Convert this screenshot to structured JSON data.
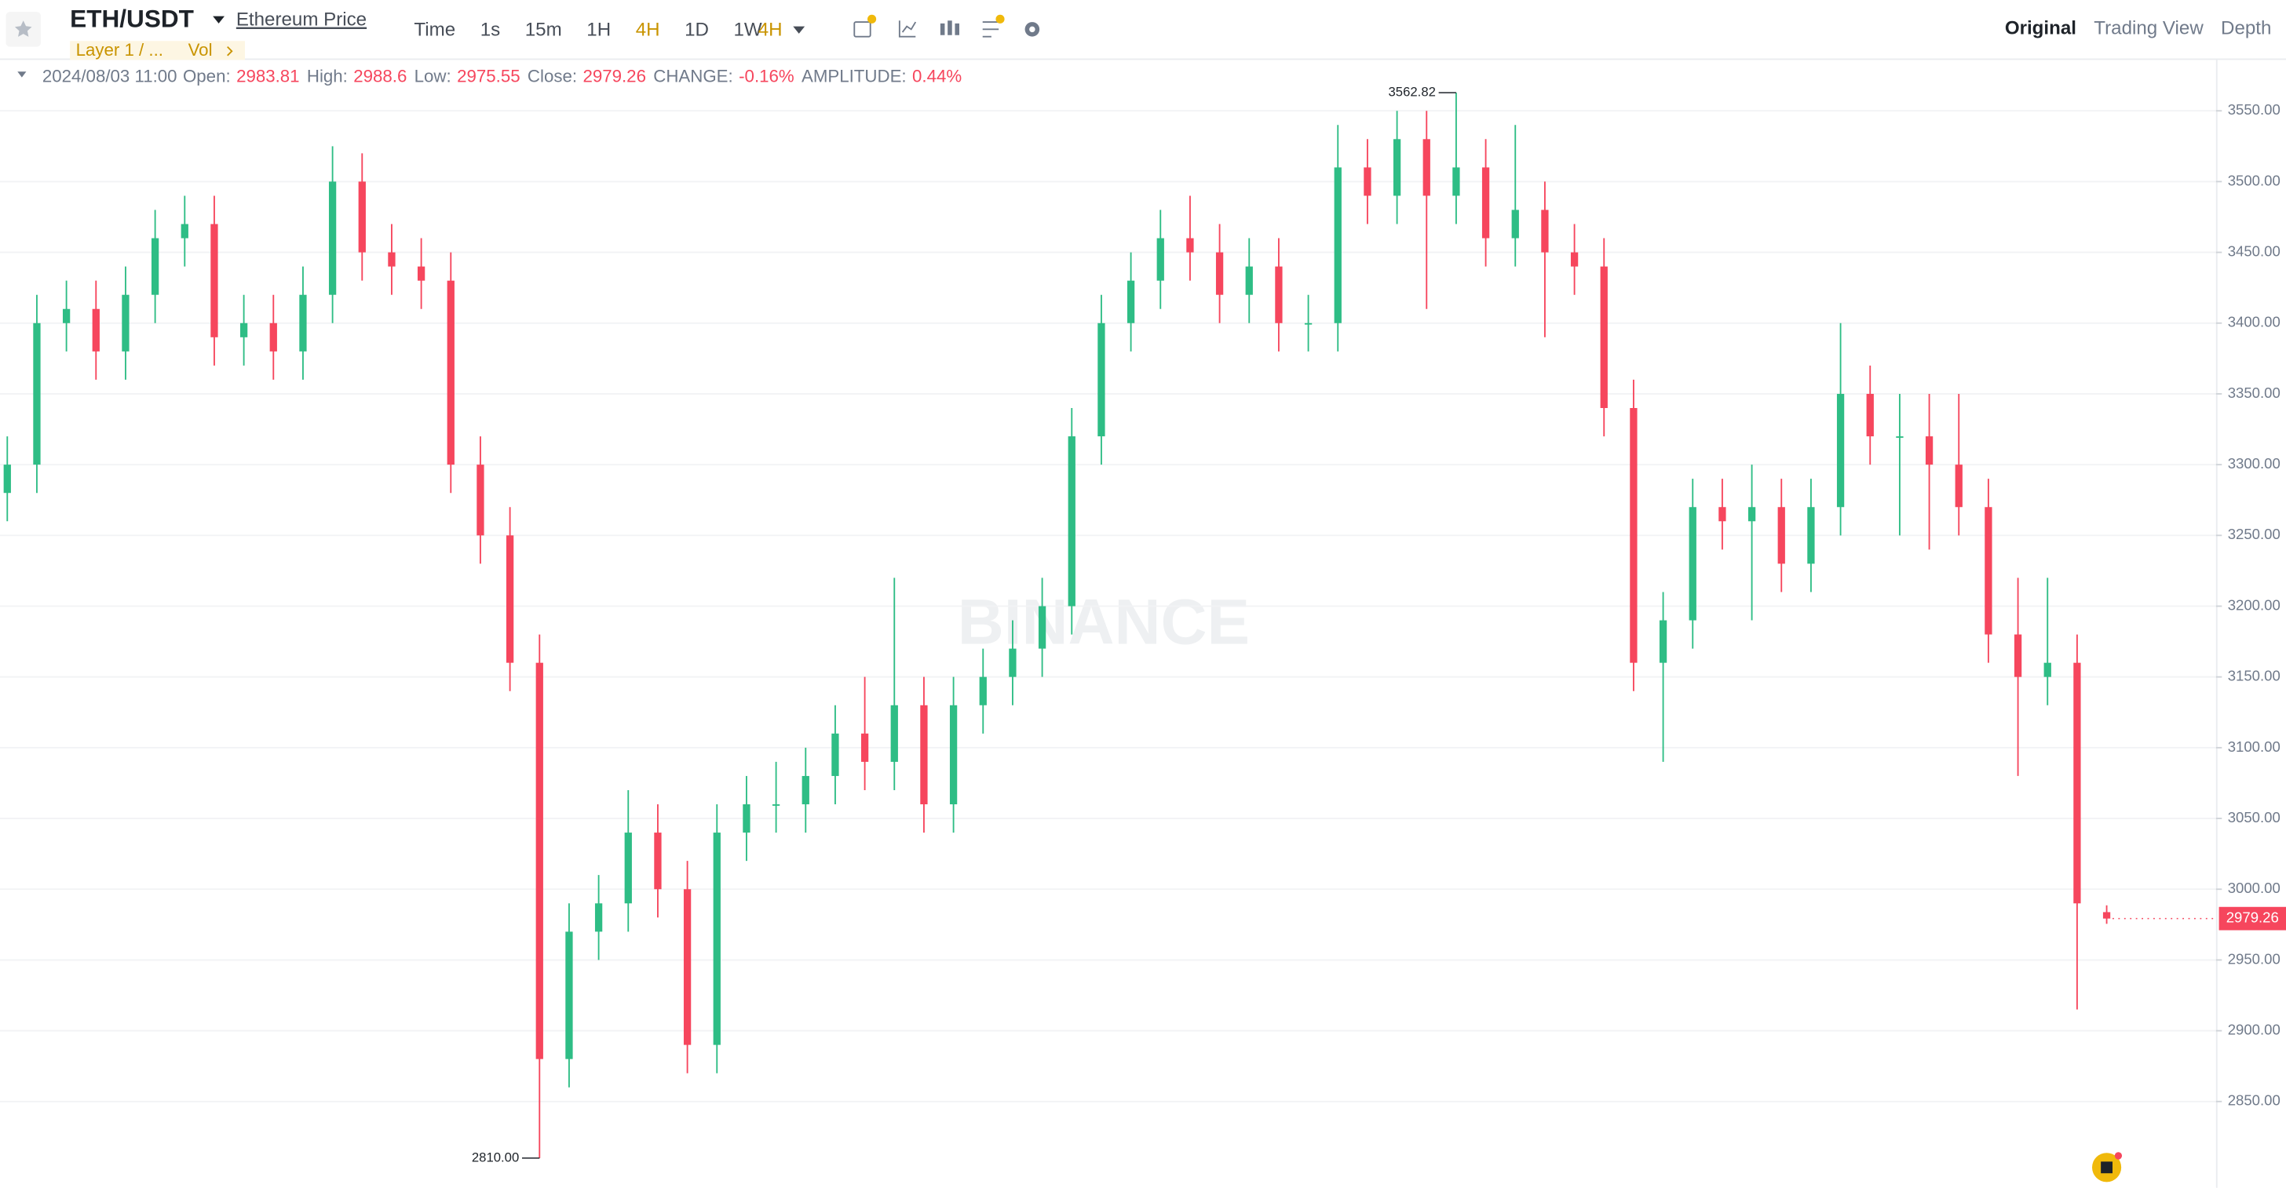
{
  "toolbar": {
    "symbol": "ETH/USDT",
    "link": "Ethereum Price",
    "intervals": [
      "Time",
      "1s",
      "15m",
      "1H",
      "4H",
      "1D",
      "1W"
    ],
    "active_index": 4,
    "selected_interval": "4H",
    "tag": "Layer 1 / ...",
    "vol": "Vol",
    "views": [
      "Original",
      "Trading View",
      "Depth"
    ],
    "active_view": 0
  },
  "legend": {
    "date": "2024/08/03 11:00",
    "open_label": "Open:",
    "high_label": "High:",
    "low_label": "Low:",
    "close_label": "Close:",
    "change_label": "CHANGE:",
    "change": "-0.16%",
    "amplitude_label": "AMPLITUDE:",
    "amplitude": "0.44%"
  },
  "watermark": "BINANCE",
  "chart_data": {
    "type": "candlestick",
    "up_color": "#2ebd85",
    "down_color": "#f6465d",
    "open": [
      3280,
      3300,
      3400,
      3410,
      3380,
      3420,
      3460,
      3470,
      3390,
      3400,
      3380,
      3420,
      3500,
      3450,
      3440,
      3430,
      3300,
      3250,
      3160,
      2880,
      2970,
      2990,
      3040,
      3000,
      2890,
      3040,
      3060,
      3060,
      3080,
      3110,
      3090,
      3130,
      3060,
      3130,
      3150,
      3170,
      3200,
      3320,
      3400,
      3430,
      3460,
      3450,
      3420,
      3440,
      3400,
      3400,
      3510,
      3490,
      3530,
      3490,
      3510,
      3460,
      3480,
      3450,
      3440,
      3340,
      3160,
      3190,
      3270,
      3260,
      3270,
      3230,
      3270,
      3350,
      3320,
      3320,
      3300,
      3270,
      3180,
      3150,
      3160,
      2983.81
    ],
    "high": [
      3320,
      3420,
      3430,
      3430,
      3440,
      3480,
      3490,
      3490,
      3420,
      3420,
      3440,
      3525,
      3520,
      3470,
      3460,
      3450,
      3320,
      3270,
      3180,
      2990,
      3010,
      3070,
      3060,
      3020,
      3060,
      3080,
      3090,
      3100,
      3130,
      3150,
      3220,
      3150,
      3150,
      3170,
      3190,
      3220,
      3340,
      3420,
      3450,
      3480,
      3490,
      3470,
      3460,
      3460,
      3420,
      3540,
      3530,
      3550,
      3550,
      3562.82,
      3530,
      3540,
      3500,
      3470,
      3460,
      3360,
      3210,
      3290,
      3290,
      3300,
      3290,
      3290,
      3400,
      3370,
      3350,
      3350,
      3350,
      3290,
      3220,
      3220,
      3180,
      2988.6
    ],
    "low": [
      3260,
      3280,
      3380,
      3360,
      3360,
      3400,
      3440,
      3370,
      3370,
      3360,
      3360,
      3400,
      3430,
      3420,
      3410,
      3280,
      3230,
      3140,
      2810,
      2860,
      2950,
      2970,
      2980,
      2870,
      2870,
      3020,
      3040,
      3040,
      3060,
      3070,
      3070,
      3040,
      3040,
      3110,
      3130,
      3150,
      3180,
      3300,
      3380,
      3410,
      3430,
      3400,
      3400,
      3380,
      3380,
      3380,
      3470,
      3470,
      3410,
      3470,
      3440,
      3440,
      3390,
      3420,
      3320,
      3140,
      3090,
      3170,
      3240,
      3190,
      3210,
      3210,
      3250,
      3300,
      3250,
      3240,
      3250,
      3160,
      3080,
      3130,
      2915,
      2975.55
    ],
    "close": [
      3300,
      3400,
      3410,
      3380,
      3420,
      3460,
      3470,
      3390,
      3400,
      3380,
      3420,
      3500,
      3450,
      3440,
      3430,
      3300,
      3250,
      3160,
      2880,
      2970,
      2990,
      3040,
      3000,
      2890,
      3040,
      3060,
      3060,
      3080,
      3110,
      3090,
      3130,
      3060,
      3130,
      3150,
      3170,
      3200,
      3320,
      3400,
      3430,
      3460,
      3450,
      3420,
      3440,
      3400,
      3400,
      3510,
      3490,
      3530,
      3490,
      3510,
      3460,
      3480,
      3450,
      3440,
      3340,
      3160,
      3190,
      3270,
      3260,
      3270,
      3230,
      3270,
      3350,
      3320,
      3320,
      3300,
      3270,
      3180,
      3150,
      3160,
      2990,
      2979.26
    ],
    "max_annotation": {
      "index": 49,
      "value": 3562.82,
      "label": "3562.82"
    },
    "min_annotation": {
      "index": 18,
      "value": 2810,
      "label": "2810.00"
    },
    "ylim": [
      2789,
      3587
    ],
    "yticks": [
      {
        "value": 2850,
        "label": "2850.00"
      },
      {
        "value": 2900,
        "label": "2900.00"
      },
      {
        "value": 2950,
        "label": "2950.00"
      },
      {
        "value": 3000,
        "label": "3000.00"
      },
      {
        "value": 3050,
        "label": "3050.00"
      },
      {
        "value": 3100,
        "label": "3100.00"
      },
      {
        "value": 3150,
        "label": "3150.00"
      },
      {
        "value": 3200,
        "label": "3200.00"
      },
      {
        "value": 3250,
        "label": "3250.00"
      },
      {
        "value": 3300,
        "label": "3300.00"
      },
      {
        "value": 3350,
        "label": "3350.00"
      },
      {
        "value": 3400,
        "label": "3400.00"
      },
      {
        "value": 3450,
        "label": "3450.00"
      },
      {
        "value": 3500,
        "label": "3500.00"
      },
      {
        "value": 3550,
        "label": "3550.00"
      }
    ],
    "grid": true
  }
}
